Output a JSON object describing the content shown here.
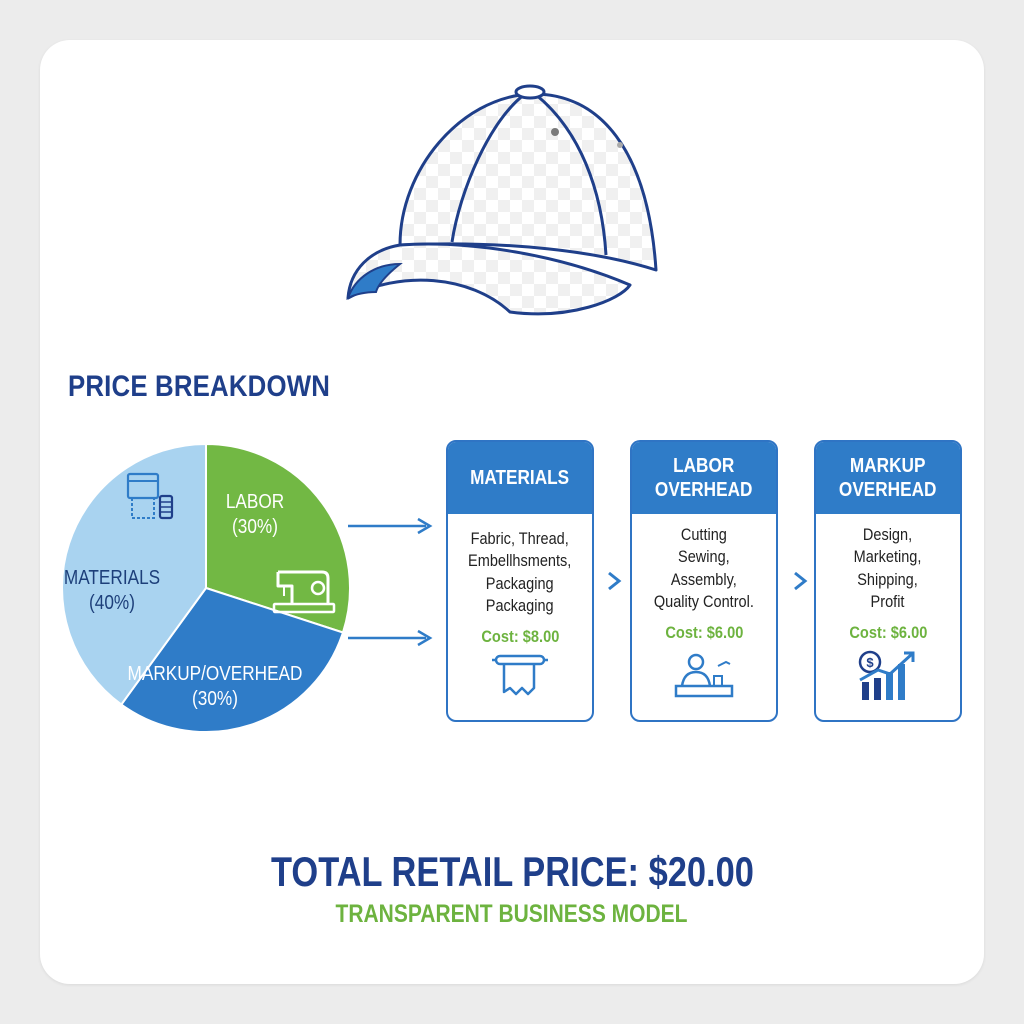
{
  "colors": {
    "materials": "#a9d3f0",
    "labor": "#72b844",
    "markup": "#2f7cc8",
    "title": "#1f3f8a",
    "accent_green": "#6db33f"
  },
  "icons": [
    "baseball-cap-icon",
    "fabric-thread-icon",
    "sewing-machine-icon",
    "fabric-roll-icon",
    "worker-desk-icon",
    "growth-chart-icon",
    "arrow-right-icon",
    "chevron-right-icon"
  ],
  "section_title": "PRICE BREAKDOWN",
  "chart_data": {
    "type": "pie",
    "title": "PRICE BREAKDOWN",
    "slices": [
      {
        "label": "MATERIALS",
        "value": 40,
        "value_label": "(40%)",
        "color": "#a9d3f0"
      },
      {
        "label": "LABOR",
        "value": 30,
        "value_label": "(30%)",
        "color": "#72b844"
      },
      {
        "label": "MARKUP/OVERHEAD",
        "value": 30,
        "value_label": "(30%)",
        "color": "#2f7cc8"
      }
    ]
  },
  "boxes": [
    {
      "title": "MATERIALS",
      "body": "Fabric, Thread,\nEmbellhsments,\nPackaging\nPackaging",
      "cost": "Cost: $8.00"
    },
    {
      "title": "LABOR\nOVERHEAD",
      "body": "Cutting\nSewing,\nAssembly,\nQuality Control.",
      "cost": "Cost: $6.00"
    },
    {
      "title": "MARKUP\nOVERHEAD",
      "body": "Design,\nMarketing,\nShipping,\nProfit",
      "cost": "Cost: $6.00"
    }
  ],
  "total": "TOTAL RETAIL PRICE: $20.00",
  "tagline": "TRANSPARENT BUSINESS MODEL"
}
